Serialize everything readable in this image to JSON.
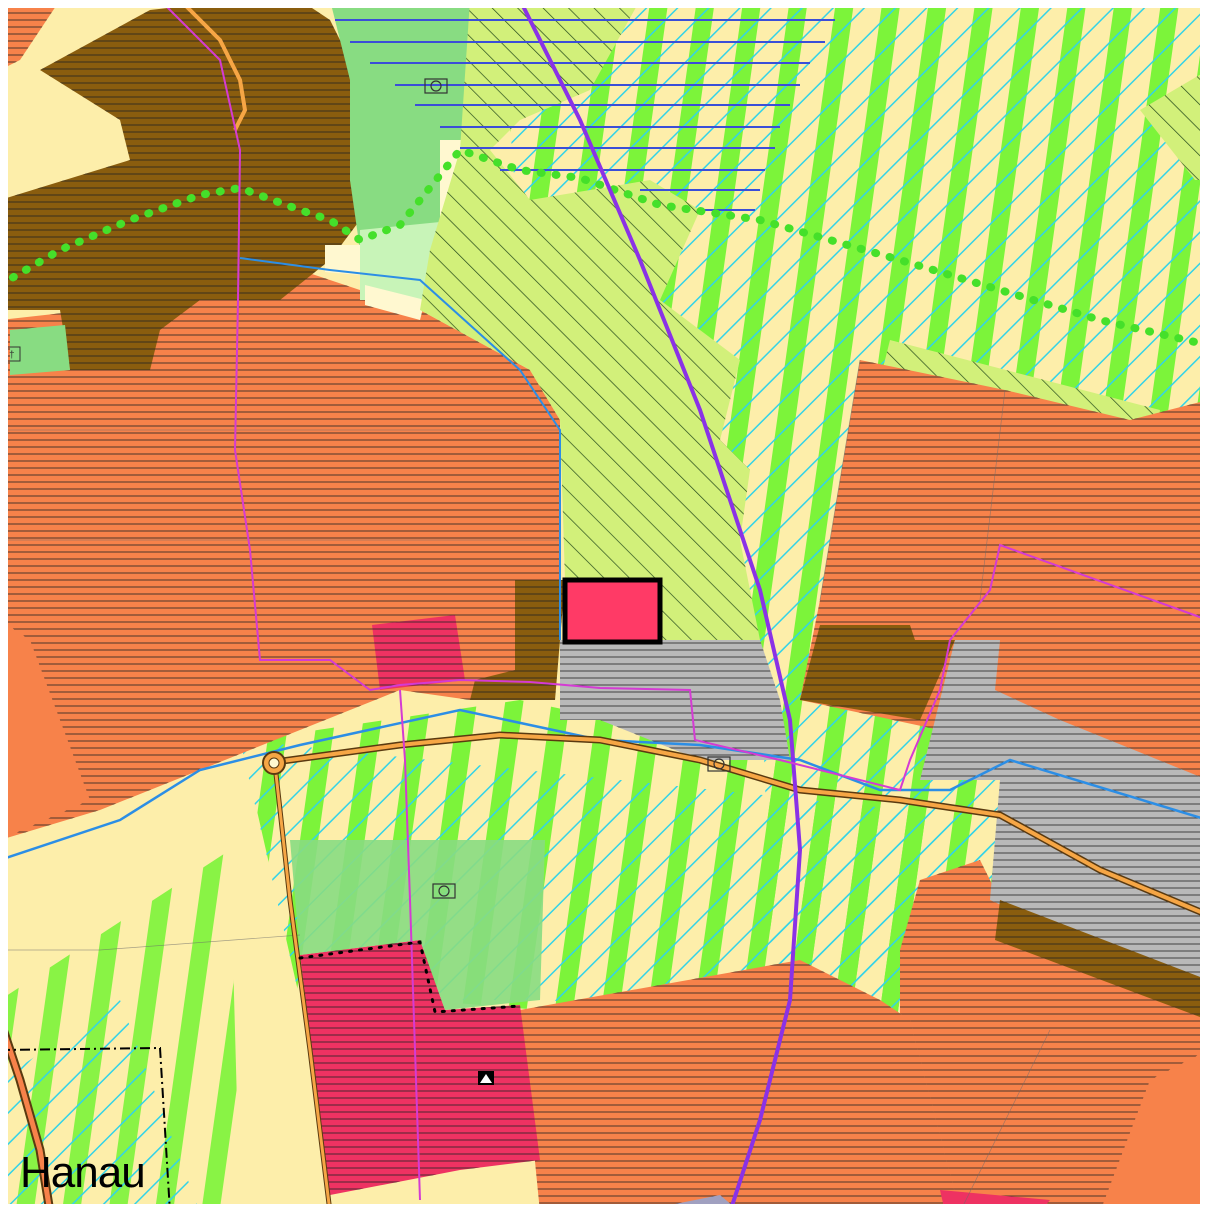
{
  "map": {
    "place_label": "Hanau",
    "colors": {
      "settlement": "#f7824a",
      "agriculture": "#fdeeaa",
      "green_area": "#88dc82",
      "green_stripe": "#7cf43a",
      "cyan_hatch": "#33d3e8",
      "industrial_brown": "#8a5d0e",
      "grey_commercial": "#b9b9b9",
      "special_red": "#ee3262",
      "highlight_parcel": "#ff3a66",
      "hatch_green": "#d2f07a",
      "main_road": "#f6a645",
      "rail_purple": "#8a32e6",
      "boundary_magenta": "#d43bd3",
      "river_blue": "#2c8ee5",
      "hline_blue": "#3b4ed8",
      "dotted_green": "#45e02a"
    },
    "symbols": [
      "circle-in-box-icon",
      "triangle-marker-icon",
      "cross-marker-icon",
      "roundabout-icon"
    ]
  }
}
